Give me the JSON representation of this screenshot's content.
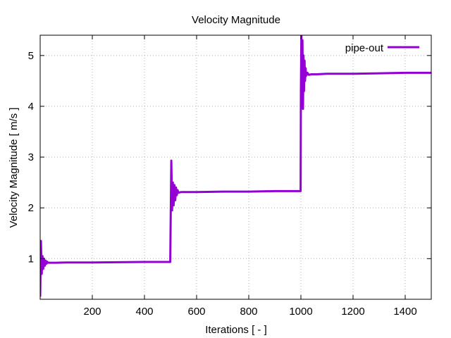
{
  "chart_data": {
    "type": "line",
    "title": "Velocity Magnitude",
    "xlabel": "Iterations [ - ]",
    "ylabel": "Velocity Magnitude [ m/s ]",
    "xlim": [
      0,
      1500
    ],
    "ylim": [
      0.2,
      5.4
    ],
    "xticks": [
      200,
      400,
      600,
      800,
      1000,
      1200,
      1400
    ],
    "yticks": [
      1,
      2,
      3,
      4,
      5
    ],
    "grid": true,
    "legend_position": "top-right",
    "series": [
      {
        "name": "pipe-out",
        "color": "#9400d3",
        "x": [
          0,
          3,
          6,
          9,
          12,
          15,
          18,
          21,
          24,
          27,
          30,
          40,
          60,
          100,
          200,
          300,
          400,
          499,
          500,
          503,
          506,
          509,
          512,
          515,
          518,
          521,
          524,
          527,
          530,
          540,
          560,
          600,
          700,
          800,
          900,
          999,
          1000,
          1002,
          1004,
          1006,
          1008,
          1010,
          1012,
          1014,
          1016,
          1018,
          1020,
          1025,
          1030,
          1040,
          1060,
          1100,
          1200,
          1300,
          1400,
          1500
        ],
        "y": [
          0.25,
          1.35,
          0.7,
          1.05,
          0.8,
          1.0,
          0.86,
          0.96,
          0.9,
          0.94,
          0.92,
          0.92,
          0.92,
          0.925,
          0.925,
          0.93,
          0.935,
          0.935,
          1.5,
          2.93,
          1.95,
          2.5,
          2.05,
          2.45,
          2.15,
          2.4,
          2.25,
          2.35,
          2.3,
          2.31,
          2.31,
          2.31,
          2.32,
          2.32,
          2.33,
          2.33,
          4.3,
          5.45,
          4.2,
          5.3,
          3.95,
          5.0,
          4.3,
          4.9,
          4.5,
          4.75,
          4.6,
          4.66,
          4.62,
          4.63,
          4.63,
          4.64,
          4.64,
          4.65,
          4.66,
          4.66
        ]
      }
    ]
  }
}
